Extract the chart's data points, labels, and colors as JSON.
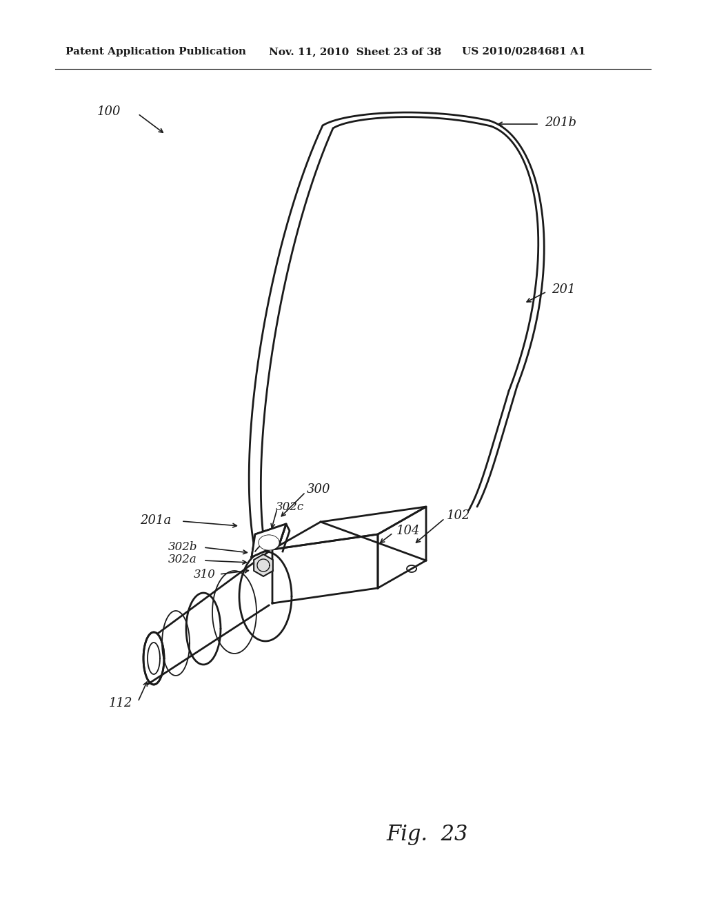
{
  "bg_color": "#ffffff",
  "line_color": "#1a1a1a",
  "header_text_left": "Patent Application Publication",
  "header_text_mid": "Nov. 11, 2010  Sheet 23 of 38",
  "header_text_right": "US 2010/0284681 A1",
  "fig_label": "Fig.  23",
  "label_100": "100",
  "label_201b": "201b",
  "label_201": "201",
  "label_201a": "201a",
  "label_300": "300",
  "label_302c": "302c",
  "label_302b": "302b",
  "label_302a": "302a",
  "label_310": "310",
  "label_104": "104",
  "label_102": "102",
  "label_112": "112",
  "lw_main": 2.0,
  "lw_thin": 1.3,
  "fontsize_header": 11,
  "fontsize_label": 13,
  "fontsize_fig": 22
}
